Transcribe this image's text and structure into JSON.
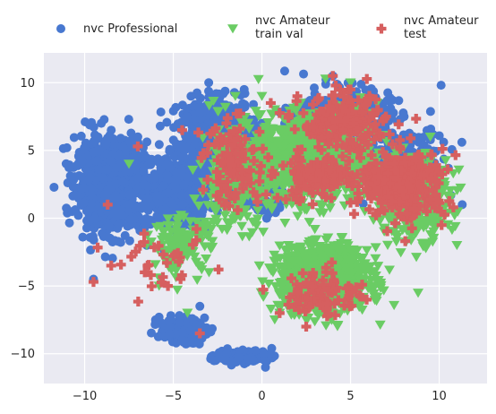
{
  "chart_data": {
    "type": "scatter",
    "title": "",
    "xlabel": "",
    "ylabel": "",
    "xlim": [
      -12.3,
      12.7
    ],
    "ylim": [
      -12.2,
      12.2
    ],
    "xticks": [
      -10,
      -5,
      0,
      5,
      10
    ],
    "yticks": [
      -10,
      -5,
      0,
      5,
      10
    ],
    "grid": true,
    "legend_position": "top",
    "series": [
      {
        "name": "nvc Professional",
        "marker": "circle",
        "color": "#4878d0",
        "clusters": [
          {
            "cx": -8.5,
            "cy": 2.5,
            "sx": 1.6,
            "sy": 2.6,
            "n": 950
          },
          {
            "cx": -4.6,
            "cy": 2.0,
            "sx": 1.3,
            "sy": 2.0,
            "n": 500
          },
          {
            "cx": -2.5,
            "cy": 6.5,
            "sx": 1.7,
            "sy": 1.8,
            "n": 550
          },
          {
            "cx": 4.5,
            "cy": 7.5,
            "sx": 2.2,
            "sy": 1.7,
            "n": 280
          },
          {
            "cx": 7.5,
            "cy": 4.5,
            "sx": 2.2,
            "sy": 2.0,
            "n": 220
          },
          {
            "cx": -4.5,
            "cy": -8.3,
            "sx": 1.0,
            "sy": 0.7,
            "n": 220
          },
          {
            "cx": -1.0,
            "cy": -10.2,
            "sx": 1.3,
            "sy": 0.4,
            "n": 130
          },
          {
            "cx": 0.0,
            "cy": 2.0,
            "sx": 1.0,
            "sy": 1.5,
            "n": 100
          }
        ],
        "x": [
          -11.0,
          -10.5,
          -9.5,
          -8.5,
          -7.0,
          -6.5,
          -5.5,
          -4.0,
          -3.0,
          -2.0,
          -1.0,
          0.0,
          2.0,
          4.0,
          4.5,
          6.0,
          7.5,
          9.0,
          11.3,
          -6.0,
          -4.5,
          -3.5,
          -2.0,
          -0.5,
          0.2,
          -9.0,
          -7.5,
          -5.0,
          -2.5,
          1.0
        ],
        "y": [
          5.2,
          0.5,
          -4.5,
          6.5,
          6.0,
          -2.0,
          -2.5,
          9.0,
          10.0,
          8.0,
          9.5,
          7.0,
          6.0,
          10.5,
          8.5,
          7.5,
          5.5,
          3.0,
          1.0,
          -7.5,
          -9.0,
          -6.5,
          -10.0,
          -10.5,
          -11.0,
          3.0,
          1.0,
          -3.5,
          0.5,
          4.0
        ]
      },
      {
        "name": "nvc Amateur\ntrain val",
        "marker": "triangle-down",
        "color": "#6acc64",
        "clusters": [
          {
            "cx": 3.0,
            "cy": 4.5,
            "sx": 2.6,
            "sy": 2.6,
            "n": 1150
          },
          {
            "cx": 3.5,
            "cy": -4.5,
            "sx": 2.0,
            "sy": 1.8,
            "n": 1150
          },
          {
            "cx": 8.5,
            "cy": 1.5,
            "sx": 1.7,
            "sy": 2.4,
            "n": 380
          },
          {
            "cx": -1.5,
            "cy": 3.0,
            "sx": 1.6,
            "sy": 3.0,
            "n": 280
          },
          {
            "cx": -4.5,
            "cy": -2.0,
            "sx": 1.3,
            "sy": 1.6,
            "n": 130
          }
        ],
        "x": [
          -7.5,
          -6.5,
          -5.0,
          -3.0,
          -1.5,
          0.0,
          1.0,
          2.5,
          4.0,
          5.0,
          6.5,
          8.5,
          9.5,
          11.0,
          1.5,
          3.0,
          5.5,
          7.5,
          -5.8,
          -4.2
        ],
        "y": [
          4.0,
          -2.0,
          -3.0,
          -0.5,
          9.0,
          9.0,
          -7.0,
          -7.5,
          -7.0,
          10.0,
          8.5,
          4.5,
          6.0,
          -2.0,
          -2.0,
          -3.5,
          -5.0,
          5.0,
          -5.0,
          -7.0
        ]
      },
      {
        "name": "nvc Amateur\ntest",
        "marker": "plus",
        "color": "#d65f5f",
        "clusters": [
          {
            "cx": 8.0,
            "cy": 2.5,
            "sx": 1.9,
            "sy": 2.0,
            "n": 320
          },
          {
            "cx": 4.5,
            "cy": 7.0,
            "sx": 1.9,
            "sy": 1.6,
            "n": 200
          },
          {
            "cx": 3.0,
            "cy": 3.0,
            "sx": 1.6,
            "sy": 1.4,
            "n": 130
          },
          {
            "cx": -1.5,
            "cy": 4.0,
            "sx": 1.5,
            "sy": 2.5,
            "n": 110
          },
          {
            "cx": 3.5,
            "cy": -5.5,
            "sx": 1.8,
            "sy": 1.4,
            "n": 90
          },
          {
            "cx": -5.5,
            "cy": -3.5,
            "sx": 2.0,
            "sy": 1.8,
            "n": 30
          }
        ],
        "x": [
          -9.5,
          -8.5,
          -7.0,
          -5.3,
          -4.5,
          -3.5,
          -2.0,
          0.5,
          2.0,
          4.0,
          5.0,
          7.0,
          9.0,
          10.0,
          10.8,
          1.0,
          2.5,
          -8.7
        ],
        "y": [
          -4.7,
          -3.5,
          5.3,
          -5.0,
          6.5,
          -8.5,
          7.0,
          8.5,
          9.0,
          10.5,
          9.5,
          7.5,
          4.5,
          3.5,
          0.8,
          -7.0,
          -8.0,
          1.0
        ]
      }
    ]
  }
}
